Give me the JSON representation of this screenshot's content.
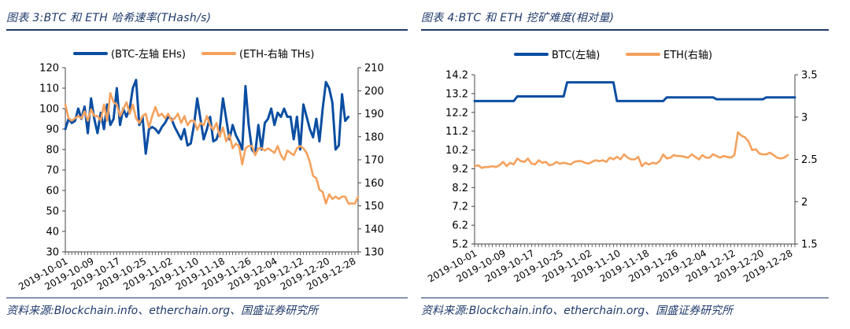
{
  "charts": [
    {
      "figure_title": "图表 3:BTC 和 ETH 哈希速率(THash/s)",
      "source": "资料来源:Blockchain.info、etherchain.org、国盛证券研究所"
    },
    {
      "figure_title": "图表 4:BTC 和 ETH 挖矿难度(相对量)",
      "source": "资料来源:Blockchain.info、etherchain.org、国盛证券研究所"
    }
  ],
  "chart_data": [
    {
      "type": "line",
      "title": "",
      "x_ticks": [
        "2019-10-01",
        "2019-10-09",
        "2019-10-17",
        "2019-10-25",
        "2019-11-02",
        "2019-11-10",
        "2019-11-18",
        "2019-11-26",
        "2019-12-04",
        "2019-12-12",
        "2019-12-20",
        "2019-12-28"
      ],
      "x_range": [
        "2019-10-01",
        "2019-12-31"
      ],
      "y_left": {
        "range": [
          30,
          120
        ],
        "ticks": [
          30,
          40,
          50,
          60,
          70,
          80,
          90,
          100,
          110,
          120
        ]
      },
      "y_right": {
        "range": [
          130,
          210
        ],
        "ticks": [
          130,
          140,
          150,
          160,
          170,
          180,
          190,
          200,
          210
        ]
      },
      "legend_position": "top",
      "grid": false,
      "series": [
        {
          "name": "(BTC-左轴 EHs)",
          "axis": "left",
          "color": "#0b4ea2",
          "values": [
            90,
            95,
            93,
            94,
            100,
            95,
            101,
            88,
            105,
            95,
            88,
            98,
            90,
            102,
            92,
            95,
            110,
            92,
            100,
            96,
            100,
            110,
            114,
            92,
            96,
            78,
            90,
            91,
            90,
            88,
            91,
            93,
            96,
            95,
            91,
            88,
            85,
            90,
            82,
            83,
            92,
            105,
            95,
            85,
            90,
            96,
            84,
            85,
            90,
            105,
            95,
            85,
            92,
            87,
            84,
            80,
            111,
            92,
            80,
            78,
            92,
            80,
            93,
            95,
            100,
            92,
            98,
            96,
            100,
            96,
            96,
            85,
            96,
            80,
            102,
            96,
            90,
            86,
            95,
            84,
            100,
            113,
            110,
            103,
            80,
            82,
            107,
            94,
            96
          ]
        },
        {
          "name": "(ETH-右轴 THs)",
          "axis": "right",
          "color": "#f4a15d",
          "values": [
            194,
            188,
            187,
            188,
            189,
            188,
            191,
            187,
            192,
            189,
            189,
            187,
            194,
            187,
            199,
            195,
            194,
            189,
            192,
            195,
            190,
            194,
            188,
            186,
            189,
            190,
            184,
            189,
            193,
            189,
            190,
            188,
            190,
            187,
            188,
            190,
            186,
            189,
            185,
            187,
            187,
            183,
            186,
            185,
            189,
            185,
            183,
            186,
            180,
            184,
            178,
            181,
            175,
            177,
            176,
            168,
            175,
            176,
            176,
            172,
            175,
            175,
            174,
            175,
            174,
            173,
            176,
            172,
            170,
            174,
            173,
            172,
            175,
            176,
            175,
            173,
            169,
            163,
            162,
            157,
            156,
            151,
            155,
            153,
            154,
            153,
            154,
            154,
            151,
            151,
            151,
            154
          ]
        }
      ]
    },
    {
      "type": "line",
      "title": "",
      "x_ticks": [
        "2019-10-01",
        "2019-10-09",
        "2019-10-17",
        "2019-10-25",
        "2019-11-02",
        "2019-11-10",
        "2019-11-18",
        "2019-11-26",
        "2019-12-04",
        "2019-12-12",
        "2019-12-20",
        "2019-12-28"
      ],
      "x_range": [
        "2019-10-01",
        "2019-12-31"
      ],
      "y_left": {
        "range": [
          5.2,
          14.2
        ],
        "ticks": [
          5.2,
          6.2,
          7.2,
          8.2,
          9.2,
          10.2,
          11.2,
          12.2,
          13.2,
          14.2
        ]
      },
      "y_right": {
        "range": [
          1.5,
          3.5
        ],
        "ticks": [
          1.5,
          2,
          2.5,
          3,
          3.5
        ]
      },
      "legend_position": "top",
      "grid": false,
      "series": [
        {
          "name": "BTC(左轴)",
          "axis": "left",
          "color": "#0b4ea2",
          "values": [
            12.8,
            12.8,
            12.8,
            12.8,
            12.8,
            12.8,
            12.8,
            12.8,
            12.8,
            12.8,
            12.8,
            12.8,
            13.05,
            13.05,
            13.05,
            13.05,
            13.05,
            13.05,
            13.05,
            13.05,
            13.05,
            13.05,
            13.05,
            13.05,
            13.05,
            13.05,
            13.8,
            13.8,
            13.8,
            13.8,
            13.8,
            13.8,
            13.8,
            13.8,
            13.8,
            13.8,
            13.8,
            13.8,
            13.8,
            13.8,
            12.8,
            12.8,
            12.8,
            12.8,
            12.8,
            12.8,
            12.8,
            12.8,
            12.8,
            12.8,
            12.8,
            12.8,
            12.8,
            12.8,
            13.0,
            13.0,
            13.0,
            13.0,
            13.0,
            13.0,
            13.0,
            13.0,
            13.0,
            13.0,
            13.0,
            13.0,
            13.0,
            13.0,
            12.9,
            12.9,
            12.9,
            12.9,
            12.9,
            12.9,
            12.9,
            12.9,
            12.9,
            12.9,
            12.9,
            12.9,
            12.9,
            12.9,
            13.0,
            13.0,
            13.0,
            13.0,
            13.0,
            13.0,
            13.0,
            13.0,
            13.0
          ]
        },
        {
          "name": "ETH(右轴)",
          "axis": "right",
          "color": "#f4a15d",
          "values": [
            2.42,
            2.43,
            2.4,
            2.41,
            2.41,
            2.42,
            2.41,
            2.43,
            2.47,
            2.42,
            2.46,
            2.44,
            2.51,
            2.48,
            2.47,
            2.51,
            2.45,
            2.44,
            2.49,
            2.46,
            2.47,
            2.43,
            2.44,
            2.47,
            2.45,
            2.46,
            2.45,
            2.44,
            2.47,
            2.48,
            2.48,
            2.46,
            2.45,
            2.47,
            2.49,
            2.48,
            2.49,
            2.47,
            2.52,
            2.5,
            2.53,
            2.5,
            2.56,
            2.52,
            2.5,
            2.5,
            2.53,
            2.42,
            2.46,
            2.44,
            2.46,
            2.45,
            2.48,
            2.56,
            2.51,
            2.52,
            2.55,
            2.54,
            2.54,
            2.53,
            2.52,
            2.56,
            2.53,
            2.5,
            2.55,
            2.52,
            2.52,
            2.56,
            2.54,
            2.52,
            2.54,
            2.53,
            2.52,
            2.55,
            2.82,
            2.78,
            2.76,
            2.71,
            2.61,
            2.62,
            2.57,
            2.56,
            2.56,
            2.58,
            2.55,
            2.52,
            2.51,
            2.52,
            2.55
          ]
        }
      ]
    }
  ]
}
